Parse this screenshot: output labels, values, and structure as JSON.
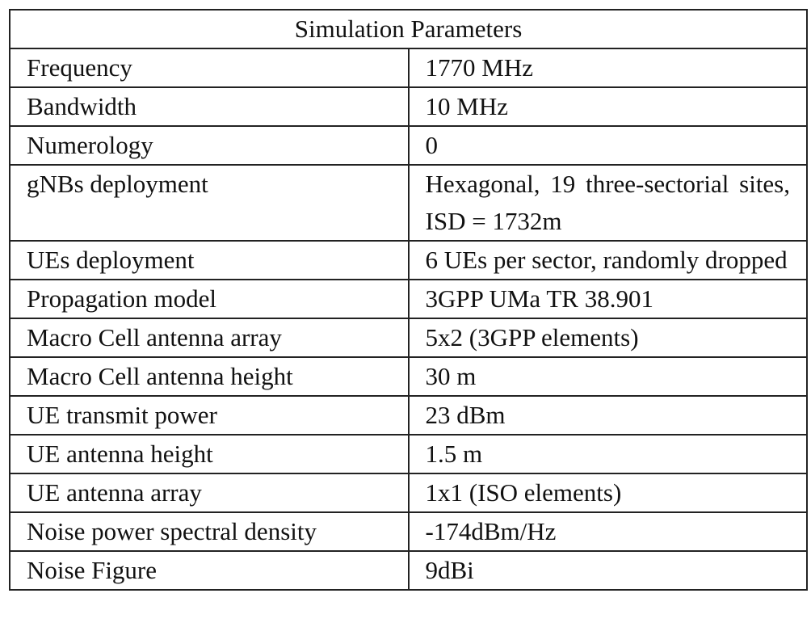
{
  "table": {
    "title": "Simulation Parameters",
    "rows": [
      [
        "Frequency",
        "1770 MHz"
      ],
      [
        "Bandwidth",
        "10 MHz"
      ],
      [
        "Numerology",
        "0"
      ],
      [
        "gNBs deployment",
        "Hexagonal, 19 three-sectorial sites, ISD = 1732m"
      ],
      [
        "UEs deployment",
        "6 UEs per sector, randomly dropped"
      ],
      [
        "Propagation model",
        "3GPP UMa TR 38.901"
      ],
      [
        "Macro Cell antenna array",
        "5x2 (3GPP elements)"
      ],
      [
        "Macro Cell antenna height",
        "30 m"
      ],
      [
        "UE transmit power",
        "23 dBm"
      ],
      [
        "UE antenna height",
        "1.5 m"
      ],
      [
        "UE antenna array",
        "1x1 (ISO elements)"
      ],
      [
        "Noise power spectral density",
        "-174dBm/Hz"
      ],
      [
        "Noise Figure",
        "9dBi"
      ]
    ]
  }
}
